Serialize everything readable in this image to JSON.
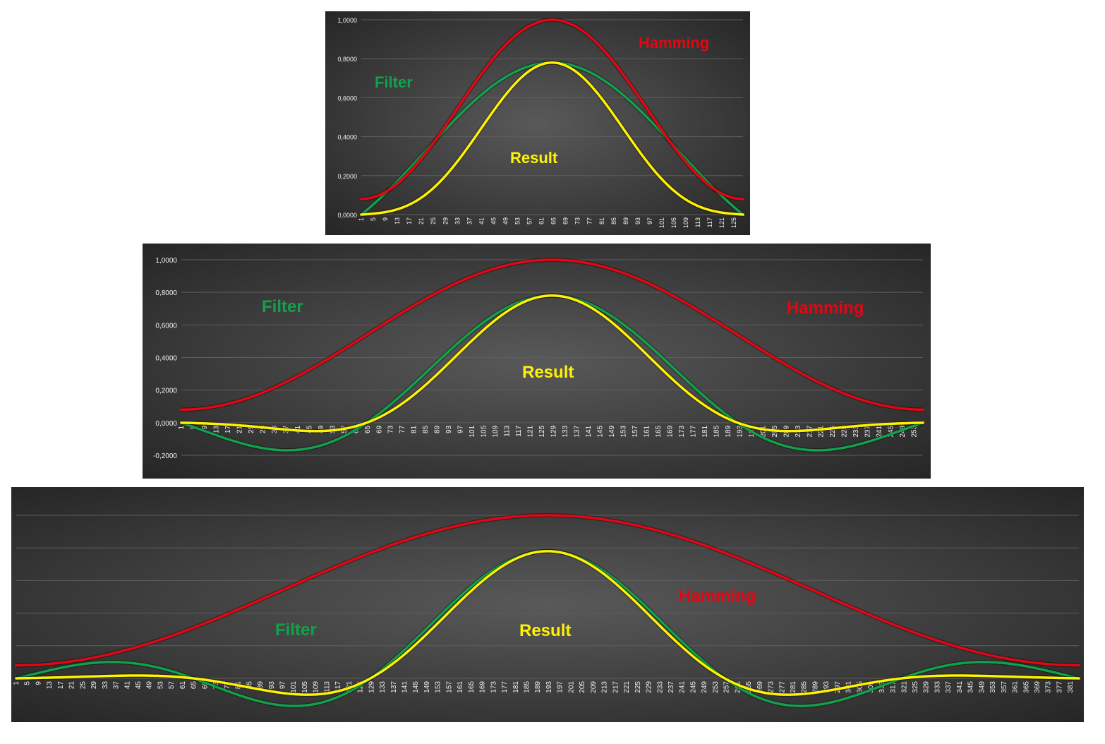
{
  "colors": {
    "hamming": "#e30613",
    "filter": "#12a14b",
    "result": "#fff200"
  },
  "chart_data": [
    {
      "type": "line",
      "x_start": 1,
      "x_end": 128,
      "x_tick_start": 1,
      "x_tick_step": 4,
      "ylim": [
        0,
        1
      ],
      "y_ticks": [
        "1,0000",
        "0,8000",
        "0,6000",
        "0,4000",
        "0,2000",
        "0,0000"
      ],
      "y_tick_values": [
        1,
        0.8,
        0.6,
        0.4,
        0.2,
        0
      ],
      "grid": true,
      "legend": "none",
      "series": [
        {
          "key": "hamming",
          "formula": "hamming",
          "amplitude": 1.0
        },
        {
          "key": "filter",
          "formula": "sinc",
          "amplitude": 0.78,
          "half_cycles": 1
        },
        {
          "key": "result",
          "formula": "product",
          "amplitude": 0.78
        }
      ],
      "annotations": [
        {
          "key": "filter",
          "text": "Filter"
        },
        {
          "key": "hamming",
          "text": "Hamming"
        },
        {
          "key": "result",
          "text": "Result"
        }
      ]
    },
    {
      "type": "line",
      "x_start": 1,
      "x_end": 256,
      "x_tick_start": 1,
      "x_tick_step": 4,
      "ylim": [
        -0.2,
        1
      ],
      "y_ticks": [
        "1,0000",
        "0,8000",
        "0,6000",
        "0,4000",
        "0,2000",
        "0,0000",
        "-0,2000"
      ],
      "y_tick_values": [
        1,
        0.8,
        0.6,
        0.4,
        0.2,
        0,
        -0.2
      ],
      "grid": true,
      "legend": "none",
      "series": [
        {
          "key": "hamming",
          "formula": "hamming",
          "amplitude": 1.0
        },
        {
          "key": "filter",
          "formula": "sinc",
          "amplitude": 0.78,
          "half_cycles": 2
        },
        {
          "key": "result",
          "formula": "product",
          "amplitude": 0.78
        }
      ],
      "annotations": [
        {
          "key": "filter",
          "text": "Filter"
        },
        {
          "key": "hamming",
          "text": "Hamming"
        },
        {
          "key": "result",
          "text": "Result"
        }
      ]
    },
    {
      "type": "line",
      "x_start": 1,
      "x_end": 384,
      "x_tick_start": 1,
      "x_tick_step": 4,
      "ylim": [
        0,
        1
      ],
      "y_ticks": [],
      "y_tick_values": [
        1,
        0.8,
        0.6,
        0.4,
        0.2,
        0
      ],
      "grid": true,
      "legend": "none",
      "series": [
        {
          "key": "hamming",
          "formula": "hamming",
          "amplitude": 1.0
        },
        {
          "key": "filter",
          "formula": "sinc",
          "amplitude": 0.78,
          "half_cycles": 3
        },
        {
          "key": "result",
          "formula": "product",
          "amplitude": 0.78
        }
      ],
      "annotations": [
        {
          "key": "hamming",
          "text": "Hamming"
        },
        {
          "key": "filter",
          "text": "Filter"
        },
        {
          "key": "result",
          "text": "Result"
        }
      ]
    }
  ]
}
